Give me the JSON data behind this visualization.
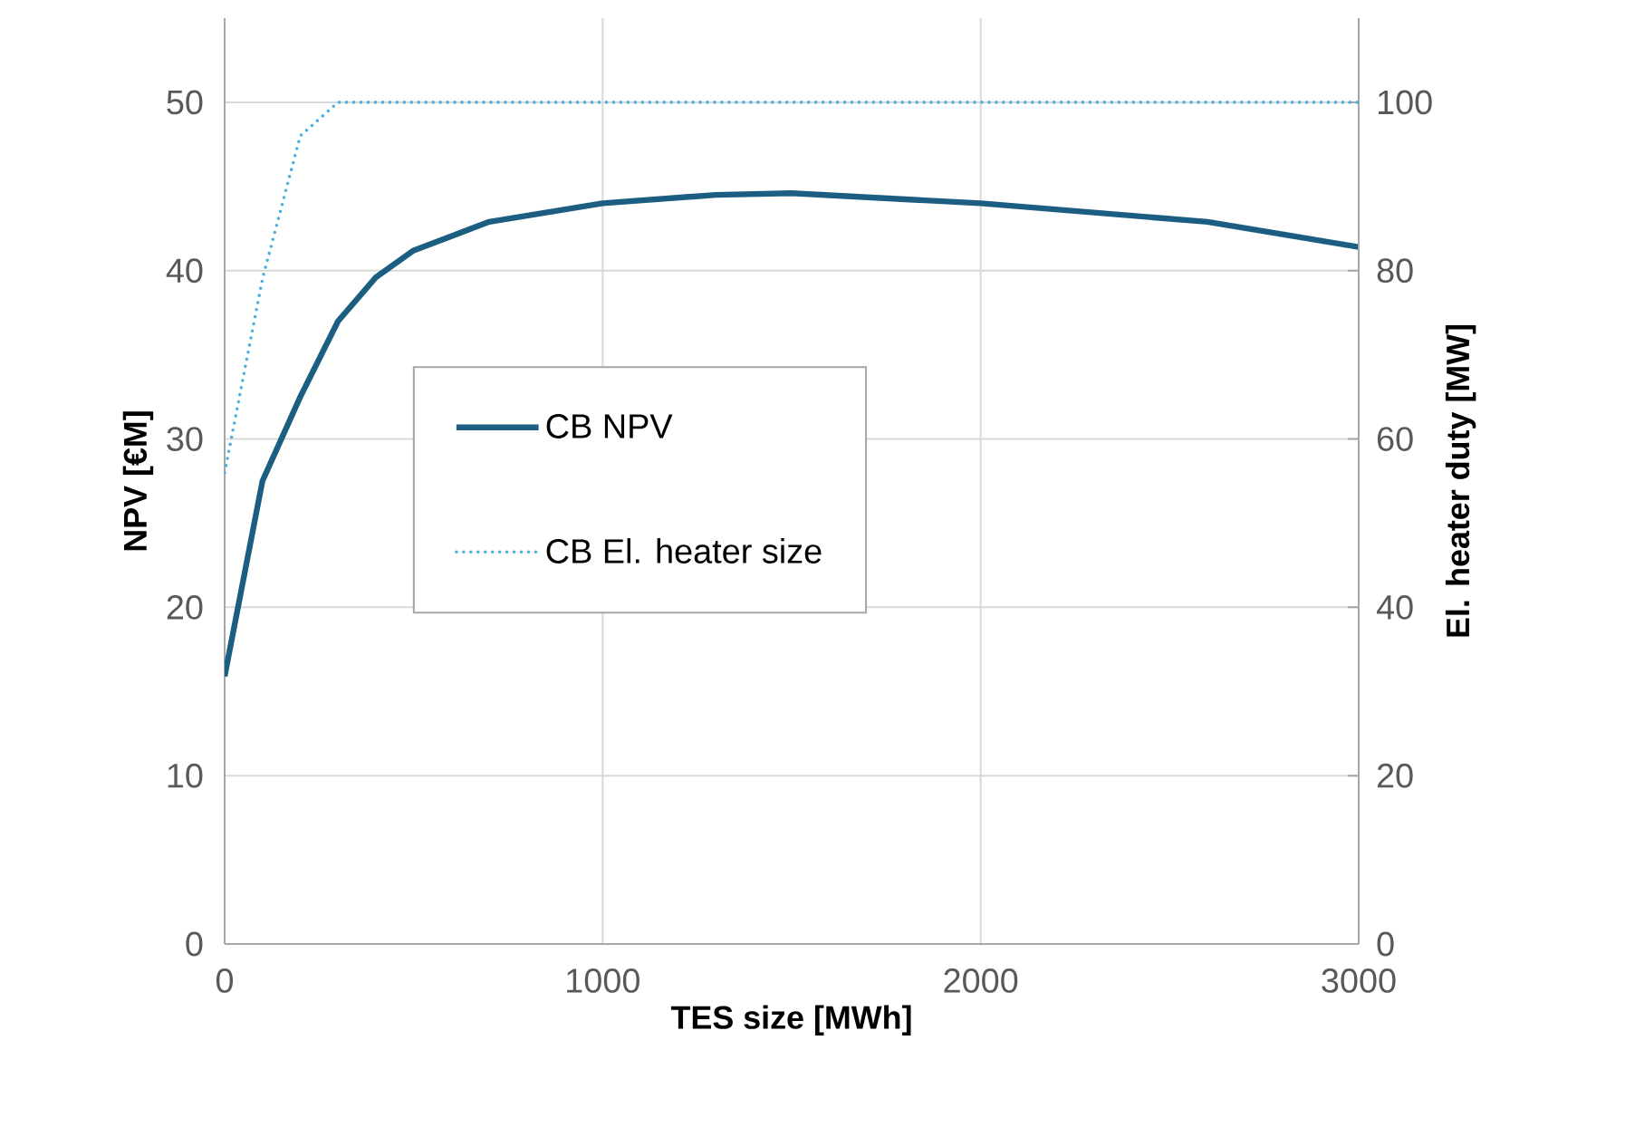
{
  "chart_data": {
    "type": "line",
    "xlabel": "TES size [MWh]",
    "ylabel": "NPV [€M]",
    "y2label": "El. heater duty [MW]",
    "xlim": [
      0,
      3000
    ],
    "xticks": [
      0,
      1000,
      2000,
      3000
    ],
    "ylim": [
      0,
      55
    ],
    "yticks": [
      0,
      10,
      20,
      30,
      40,
      50
    ],
    "y2lim": [
      0,
      110
    ],
    "y2ticks": [
      0,
      20,
      40,
      60,
      80,
      100
    ],
    "grid": true,
    "legend": "center",
    "marker": "none",
    "series": [
      {
        "name": "CB NPV",
        "color": "#1b5e82",
        "line_style": "solid",
        "x": [
          0,
          100,
          200,
          300,
          400,
          500,
          700,
          1000,
          1300,
          1500,
          2000,
          2600,
          3000
        ],
        "values": [
          15.9,
          27.5,
          32.5,
          37.0,
          39.6,
          41.2,
          42.9,
          44.0,
          44.5,
          44.6,
          44.0,
          42.9,
          41.4
        ]
      },
      {
        "name": "CB El. heater size",
        "color": "#4aafe0",
        "line_style": "dotted",
        "axis": "y2",
        "x": [
          0,
          100,
          200,
          300,
          3000
        ],
        "values": [
          56,
          79,
          96,
          100,
          100
        ]
      }
    ]
  }
}
